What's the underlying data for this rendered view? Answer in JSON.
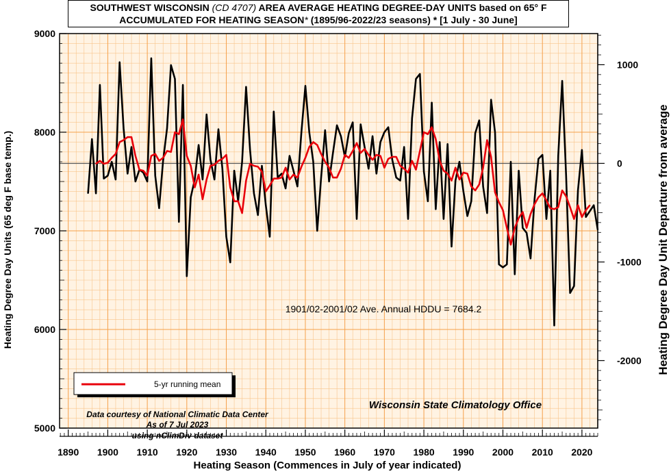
{
  "title": {
    "line1_prefix": "SOUTHWEST WISCONSIN ",
    "line1_code": "(CD 4707)",
    "line1_suffix": " AREA AVERAGE HEATING DEGREE-DAY UNITS based on 65° F",
    "line2_prefix": "ACCUMULATED FOR HEATING SEASON",
    "line2_star": "*",
    "line2_suffix": "  (1895/96-2022/23 seasons) * [1 July - 30 June]"
  },
  "colors": {
    "plot_bg": "#fff3e3",
    "grid_major": "#f5a04a",
    "grid_minor": "#f8c48a",
    "hddu_line": "#000000",
    "running_mean": "#e8000b"
  },
  "annotations": {
    "average_text": "1901/02-2001/02 Ave. Annual HDDU = 7684.2",
    "credit_line1": "Data courtesy of National Climatic Data Center",
    "credit_line2": "As of 7 Jul 2023",
    "credit_line3": "using nClimDiv dataset",
    "office": "Wisconsin State Climatology Office"
  },
  "legend": {
    "label": "5-yr running mean"
  },
  "chart_data": {
    "type": "line",
    "xlabel": "Heating Season (Commences in July of year indicated)",
    "ylabel": "Heating Degree Day Units (65 deg F base temp.)",
    "y2label": "Heating Degree Day Unit Departure from average",
    "xlim": [
      1887.8,
      2024
    ],
    "ylim": [
      5000,
      9000
    ],
    "x_ticks": [
      1890,
      1900,
      1910,
      1920,
      1930,
      1940,
      1950,
      1960,
      1970,
      1980,
      1990,
      2000,
      2010,
      2020
    ],
    "y_ticks": [
      5000,
      6000,
      7000,
      8000,
      9000
    ],
    "y2_ticks": [
      1000,
      0,
      -1000,
      -2000
    ],
    "average": 7684.2,
    "series": [
      {
        "name": "Annual HDDU",
        "x_start": 1895,
        "values": [
          7380,
          7930,
          7380,
          8480,
          7530,
          7560,
          7700,
          7520,
          8710,
          8040,
          7580,
          7850,
          7500,
          7620,
          7590,
          7500,
          8750,
          7560,
          7230,
          7710,
          8040,
          8680,
          8540,
          7090,
          8480,
          6540,
          7340,
          7520,
          7870,
          7520,
          8180,
          7720,
          7520,
          8030,
          7630,
          6940,
          6680,
          7610,
          7300,
          7700,
          8460,
          7820,
          7380,
          7160,
          7660,
          7260,
          6940,
          8210,
          7540,
          7580,
          7430,
          7760,
          7610,
          7450,
          8000,
          8470,
          8000,
          7700,
          7000,
          7540,
          8020,
          7500,
          7790,
          8070,
          7960,
          7750,
          7990,
          8100,
          7120,
          8080,
          7850,
          7630,
          7960,
          7580,
          7900,
          8000,
          8050,
          7720,
          7540,
          7510,
          7850,
          7120,
          8140,
          8540,
          8590,
          7600,
          7300,
          8300,
          7220,
          7900,
          7120,
          7880,
          6840,
          7510,
          7700,
          7400,
          7150,
          7300,
          7990,
          8120,
          7450,
          7180,
          8330,
          8000,
          6660,
          6630,
          6660,
          7700,
          6560,
          7610,
          7030,
          6980,
          6720,
          7320,
          7730,
          7770,
          7120,
          7610,
          6040,
          7760,
          8520,
          7560,
          6370,
          6440,
          7410,
          7820,
          7140,
          7200,
          7260,
          7010
        ]
      },
      {
        "name": "5-yr running mean",
        "x_start": 1897,
        "values": [
          7680,
          7710,
          7680,
          7690,
          7740,
          7780,
          7900,
          7920,
          7950,
          7950,
          7760,
          7620,
          7610,
          7560,
          7760,
          7780,
          7710,
          7740,
          7810,
          7800,
          8000,
          7980,
          8130,
          7760,
          7660,
          7440,
          7570,
          7320,
          7520,
          7660,
          7670,
          7710,
          7730,
          7770,
          7440,
          7300,
          7300,
          7180,
          7510,
          7680,
          7660,
          7650,
          7600,
          7400,
          7460,
          7530,
          7530,
          7540,
          7640,
          7520,
          7570,
          7540,
          7650,
          7740,
          7850,
          7900,
          7870,
          7780,
          7700,
          7640,
          7540,
          7540,
          7630,
          7770,
          7740,
          7810,
          7890,
          7790,
          7830,
          7770,
          7720,
          7770,
          7760,
          7640,
          7730,
          7750,
          7750,
          7660,
          7630,
          7590,
          7710,
          7620,
          7810,
          8000,
          7980,
          8050,
          7930,
          7710,
          7610,
          7580,
          7510,
          7640,
          7520,
          7590,
          7580,
          7450,
          7410,
          7470,
          7640,
          7920,
          7750,
          7390,
          7290,
          7210,
          7030,
          6860,
          7030,
          7130,
          7190,
          7030,
          7170,
          7270,
          7340,
          7380,
          7310,
          7230,
          7220,
          7240,
          7410,
          7350,
          7240,
          7120,
          7260,
          7140,
          7210,
          7260
        ]
      }
    ]
  }
}
